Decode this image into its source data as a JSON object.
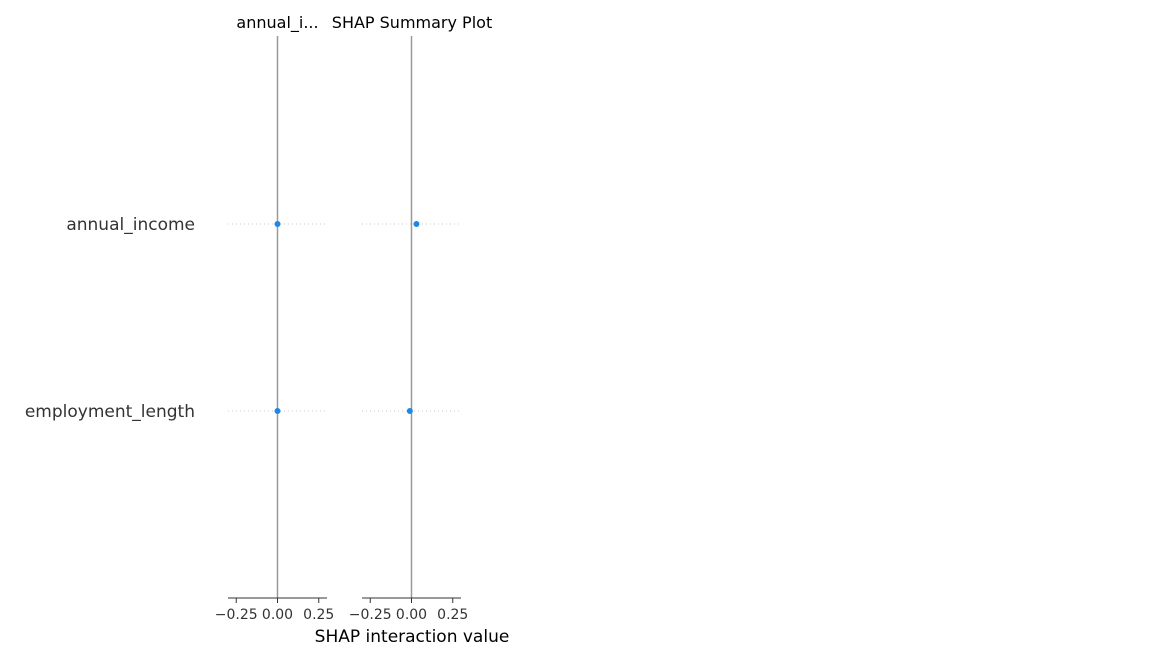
{
  "chart_data": {
    "type": "scatter",
    "title": "SHAP Summary Plot",
    "xlabel": "SHAP interaction value",
    "features": [
      "annual_income",
      "employment_length"
    ],
    "colors": {
      "point": "#1e88e5",
      "zero_line": "#999999",
      "axis": "#333333",
      "grid": "#cccccc"
    },
    "panels": [
      {
        "title": "annual_i...",
        "xlim": [
          -0.3,
          0.3
        ],
        "ticks": [
          -0.25,
          0.0,
          0.25
        ],
        "tick_labels": [
          "−0.25",
          "0.00",
          "0.25"
        ],
        "points": [
          {
            "feature": "annual_income",
            "x": 0.0
          },
          {
            "feature": "employment_length",
            "x": 0.0
          }
        ]
      },
      {
        "title": "",
        "xlim": [
          -0.3,
          0.3
        ],
        "ticks": [
          -0.25,
          0.0,
          0.25
        ],
        "tick_labels": [
          "−0.25",
          "0.00",
          "0.25"
        ],
        "points": [
          {
            "feature": "annual_income",
            "x": 0.03
          },
          {
            "feature": "employment_length",
            "x": -0.01
          }
        ]
      }
    ]
  }
}
